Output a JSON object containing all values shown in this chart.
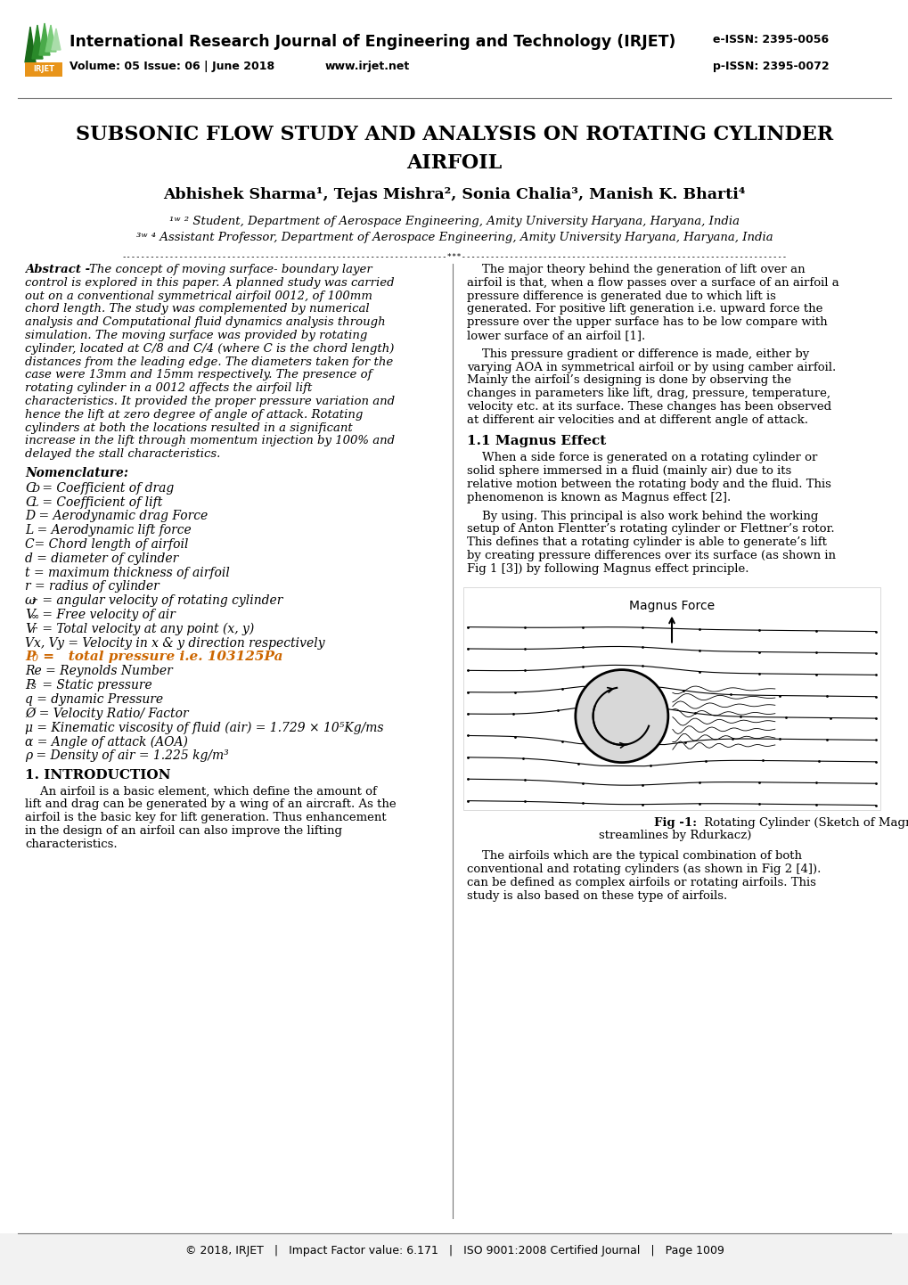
{
  "journal_title": "International Research Journal of Engineering and Technology (IRJET)",
  "journal_volume": "Volume: 05 Issue: 06 | June 2018",
  "journal_website": "www.irjet.net",
  "eissn": "e-ISSN: 2395-0056",
  "pissn": "p-ISSN: 2395-0072",
  "footer_text": "© 2018, IRJET   |   Impact Factor value: 6.171   |   ISO 9001:2008 Certified Journal   |   Page 1009",
  "orange_color": "#e8941a",
  "green1": "#2a7a2a",
  "green2": "#4aaa4a",
  "green3": "#7ac87a",
  "background_color": "#ffffff"
}
